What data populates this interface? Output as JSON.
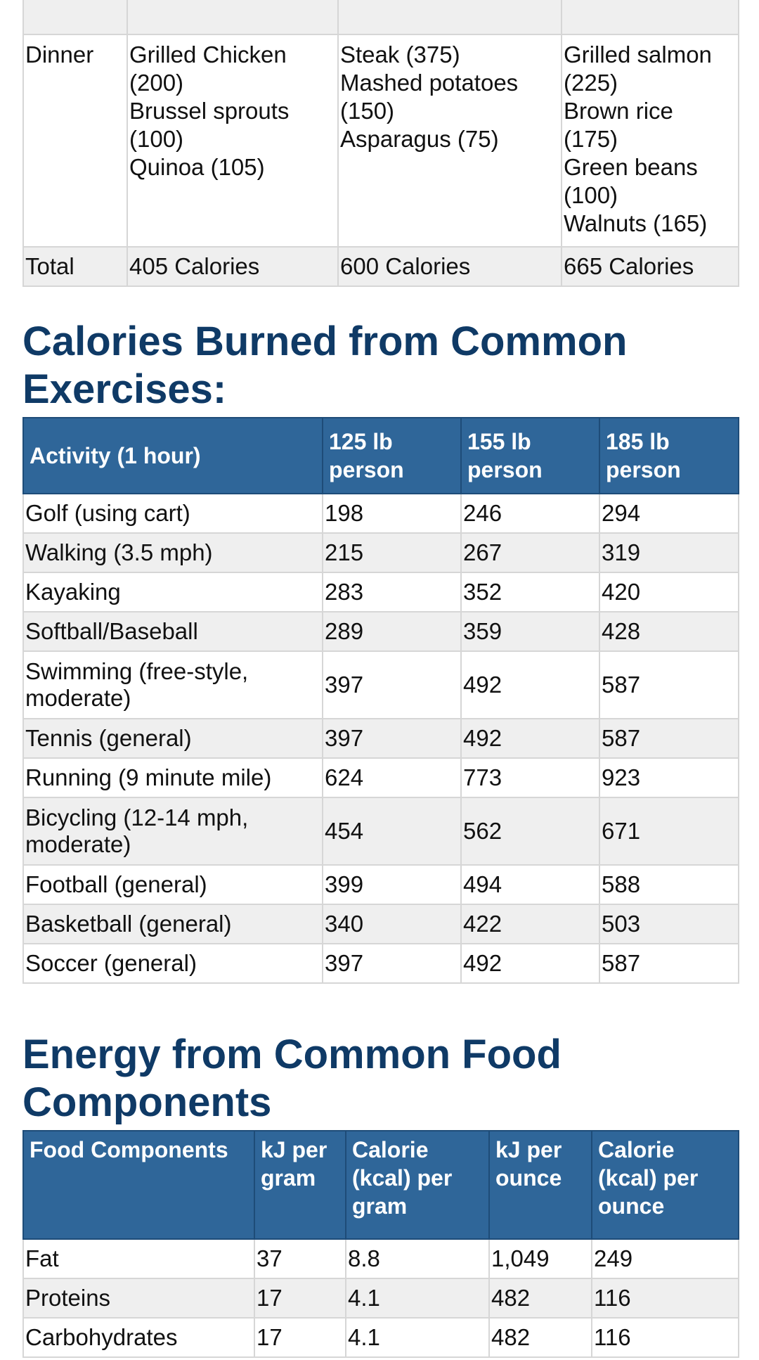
{
  "meal_table": {
    "dinner": {
      "label": "Dinner",
      "col1": [
        "Grilled Chicken",
        "(200)",
        "Brussel sprouts",
        "(100)",
        "Quinoa (105)"
      ],
      "col2": [
        "Steak (375)",
        "Mashed potatoes",
        "(150)",
        "Asparagus (75)"
      ],
      "col3": [
        "Grilled salmon",
        "(225)",
        "Brown rice",
        "(175)",
        "Green beans",
        "(100)",
        "Walnuts (165)"
      ]
    },
    "total": {
      "label": "Total",
      "values": [
        "405 Calories",
        "600 Calories",
        "665 Calories"
      ]
    }
  },
  "exercise_section": {
    "heading_line1": "Calories Burned from Common",
    "heading_line2": "Exercises:",
    "headers": [
      "Activity (1 hour)",
      "125 lb person",
      "155 lb person",
      "185 lb person"
    ],
    "rows": [
      {
        "activity": "Golf (using cart)",
        "values": [
          "198",
          "246",
          "294"
        ]
      },
      {
        "activity": "Walking (3.5 mph)",
        "values": [
          "215",
          "267",
          "319"
        ]
      },
      {
        "activity": "Kayaking",
        "values": [
          "283",
          "352",
          "420"
        ]
      },
      {
        "activity": "Softball/Baseball",
        "values": [
          "289",
          "359",
          "428"
        ]
      },
      {
        "activity": "Swimming (free-style, moderate)",
        "values": [
          "397",
          "492",
          "587"
        ]
      },
      {
        "activity": "Tennis (general)",
        "values": [
          "397",
          "492",
          "587"
        ]
      },
      {
        "activity": "Running (9 minute mile)",
        "values": [
          "624",
          "773",
          "923"
        ]
      },
      {
        "activity": "Bicycling (12-14 mph, moderate)",
        "values": [
          "454",
          "562",
          "671"
        ]
      },
      {
        "activity": "Football (general)",
        "values": [
          "399",
          "494",
          "588"
        ]
      },
      {
        "activity": "Basketball (general)",
        "values": [
          "340",
          "422",
          "503"
        ]
      },
      {
        "activity": "Soccer (general)",
        "values": [
          "397",
          "492",
          "587"
        ]
      }
    ]
  },
  "energy_section": {
    "heading_line1": "Energy from Common Food",
    "heading_line2": "Components",
    "headers": [
      "Food Components",
      "kJ per gram",
      "Calorie (kcal) per gram",
      "kJ per ounce",
      "Calorie (kcal) per ounce"
    ],
    "rows": [
      {
        "component": "Fat",
        "values": [
          "37",
          "8.8",
          "1,049",
          "249"
        ]
      },
      {
        "component": "Proteins",
        "values": [
          "17",
          "4.1",
          "482",
          "116"
        ]
      },
      {
        "component": "Carbohydrates",
        "values": [
          "17",
          "4.1",
          "482",
          "116"
        ]
      }
    ]
  }
}
